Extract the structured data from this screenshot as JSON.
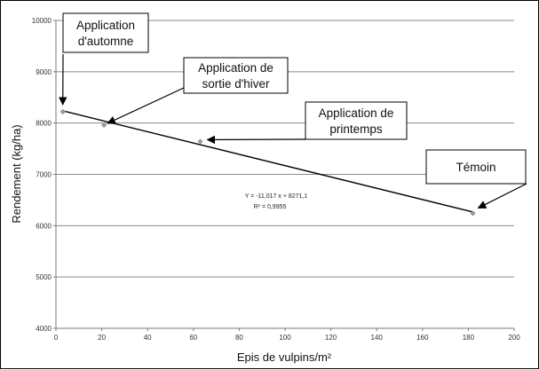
{
  "chart_data": {
    "type": "scatter",
    "xlabel": "Epis de vulpins/m²",
    "ylabel": "Rendement (kg/ha)",
    "xlim": [
      0,
      200
    ],
    "ylim": [
      4000,
      10000
    ],
    "x_ticks": [
      "0",
      "20",
      "40",
      "60",
      "80",
      "100",
      "120",
      "140",
      "160",
      "180",
      "200"
    ],
    "y_ticks": [
      "4000",
      "5000",
      "6000",
      "7000",
      "8000",
      "9000",
      "10000"
    ],
    "grid": {
      "horizontal": true,
      "vertical": false
    },
    "series": [
      {
        "points": [
          {
            "x": 3,
            "y": 8220
          },
          {
            "x": 21,
            "y": 7960
          },
          {
            "x": 63,
            "y": 7640
          },
          {
            "x": 182,
            "y": 6240
          }
        ]
      }
    ],
    "trendline": {
      "type": "linear",
      "slope": -11.017,
      "intercept": 8271.1,
      "x_range": [
        3,
        182
      ],
      "equation": "Y = -11,017 x + 8271,1",
      "r2": "R² = 0,9955"
    },
    "annotations": [
      {
        "lines": [
          "Application",
          "d'automne"
        ],
        "point": 0
      },
      {
        "lines": [
          "Application de",
          "sortie d'hiver"
        ],
        "point": 1
      },
      {
        "lines": [
          "Application de",
          "printemps"
        ],
        "point": 2
      },
      {
        "lines": [
          "Témoin"
        ],
        "point": 3
      }
    ],
    "colors": {
      "grid": "#8a8a8a",
      "marker": "#9a9a9a",
      "line": "#000000"
    }
  }
}
